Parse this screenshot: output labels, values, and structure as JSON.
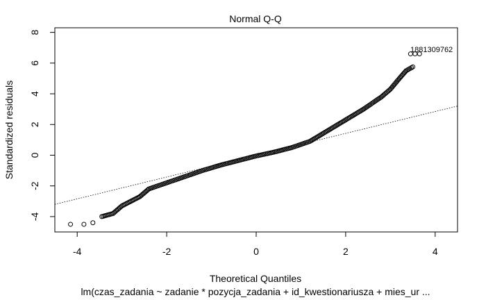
{
  "chart_data": {
    "type": "scatter",
    "title": "Normal Q-Q",
    "xlabel": "Theoretical Quantiles",
    "ylabel": "Standardized residuals",
    "subtitle": "lm(czas_zadania ~ zadanie * pozycja_zadania + id_kwestionariusza + mies_ur  ...",
    "xlim": [
      -4.5,
      4.5
    ],
    "ylim": [
      -5.0,
      8.3
    ],
    "x_ticks": [
      -4,
      -2,
      0,
      2,
      4
    ],
    "y_ticks": [
      -4,
      -2,
      0,
      2,
      4,
      6,
      8
    ],
    "grid": false,
    "point_style": "open circle",
    "reference_line": {
      "type": "dotted",
      "passes_through": [
        [
          -4.5,
          -3.2
        ],
        [
          4.5,
          3.2
        ]
      ]
    },
    "labeled_points": [
      {
        "label": "1881",
        "x": 3.45,
        "y": 6.6
      },
      {
        "label": "3099",
        "x": 3.55,
        "y": 6.6
      },
      {
        "label": "762",
        "x": 3.65,
        "y": 6.6
      }
    ],
    "point_label_text": "1881309762",
    "curve_points": [
      {
        "x": -4.15,
        "y": -4.5
      },
      {
        "x": -3.85,
        "y": -4.5
      },
      {
        "x": -3.65,
        "y": -4.4
      },
      {
        "x": -3.45,
        "y": -4.0
      },
      {
        "x": -3.2,
        "y": -3.8
      },
      {
        "x": -3.0,
        "y": -3.3
      },
      {
        "x": -2.8,
        "y": -3.0
      },
      {
        "x": -2.6,
        "y": -2.7
      },
      {
        "x": -2.4,
        "y": -2.2
      },
      {
        "x": -2.2,
        "y": -2.0
      },
      {
        "x": -2.0,
        "y": -1.8
      },
      {
        "x": -1.6,
        "y": -1.4
      },
      {
        "x": -1.2,
        "y": -1.0
      },
      {
        "x": -0.8,
        "y": -0.65
      },
      {
        "x": -0.4,
        "y": -0.35
      },
      {
        "x": 0.0,
        "y": -0.05
      },
      {
        "x": 0.4,
        "y": 0.2
      },
      {
        "x": 0.8,
        "y": 0.5
      },
      {
        "x": 1.2,
        "y": 0.9
      },
      {
        "x": 1.6,
        "y": 1.6
      },
      {
        "x": 2.0,
        "y": 2.3
      },
      {
        "x": 2.4,
        "y": 3.0
      },
      {
        "x": 2.8,
        "y": 3.8
      },
      {
        "x": 3.0,
        "y": 4.3
      },
      {
        "x": 3.2,
        "y": 5.0
      },
      {
        "x": 3.35,
        "y": 5.5
      },
      {
        "x": 3.5,
        "y": 5.75
      }
    ]
  }
}
